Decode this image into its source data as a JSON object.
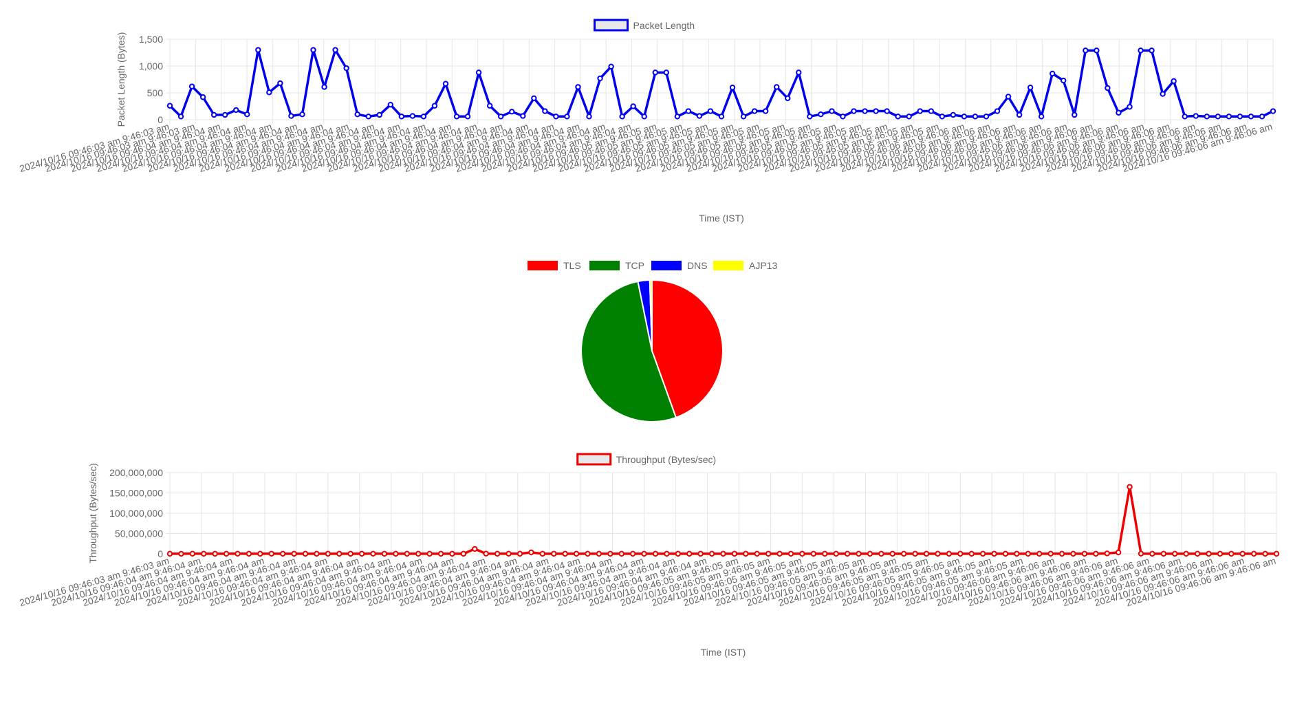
{
  "chart_data": [
    {
      "type": "line",
      "legend": "Packet Length",
      "legend_position": "top",
      "grid": true,
      "xlabel": "Time (IST)",
      "ylabel": "Packet Length (Bytes)",
      "ylim": [
        0,
        1500
      ],
      "yticks": [
        "0",
        "500",
        "1,000",
        "1,500"
      ],
      "color": "#0000ee",
      "values": [
        260,
        60,
        620,
        420,
        90,
        90,
        180,
        100,
        1300,
        510,
        680,
        70,
        100,
        1300,
        610,
        1300,
        960,
        100,
        60,
        90,
        280,
        60,
        70,
        60,
        260,
        670,
        60,
        60,
        880,
        260,
        60,
        150,
        70,
        400,
        160,
        60,
        60,
        610,
        60,
        770,
        990,
        60,
        250,
        60,
        880,
        880,
        60,
        160,
        70,
        160,
        60,
        600,
        60,
        160,
        160,
        610,
        400,
        880,
        60,
        100,
        160,
        60,
        160,
        160,
        160,
        160,
        60,
        60,
        160,
        160,
        60,
        90,
        60,
        60,
        60,
        160,
        430,
        90,
        600,
        60,
        860,
        730,
        90,
        1290,
        1290,
        590,
        130,
        240,
        1290,
        1290,
        480,
        720,
        60,
        70,
        60,
        60,
        60,
        60,
        60,
        60,
        160
      ],
      "tick_labels": [
        "2024/10/16 09:46:03 am 9:46:03 am",
        "2024/10/16 09:46:03 am 9:46:03 am",
        "2024/10/16 09:46:04 am 9:46:04 am",
        "2024/10/16 09:46:04 am 9:46:04 am",
        "2024/10/16 09:46:04 am 9:46:04 am",
        "2024/10/16 09:46:04 am 9:46:04 am",
        "2024/10/16 09:46:04 am 9:46:04 am",
        "2024/10/16 09:46:04 am 9:46:04 am",
        "2024/10/16 09:46:04 am 9:46:04 am",
        "2024/10/16 09:46:04 am 9:46:04 am",
        "2024/10/16 09:46:04 am 9:46:04 am",
        "2024/10/16 09:46:04 am 9:46:04 am",
        "2024/10/16 09:46:04 am 9:46:04 am",
        "2024/10/16 09:46:04 am 9:46:04 am",
        "2024/10/16 09:46:04 am 9:46:04 am",
        "2024/10/16 09:46:04 am 9:46:04 am",
        "2024/10/16 09:46:04 am 9:46:04 am",
        "2024/10/16 09:46:04 am 9:46:04 am",
        "2024/10/16 09:46:04 am 9:46:04 am",
        "2024/10/16 09:46:05 am 9:46:05 am",
        "2024/10/16 09:46:05 am 9:46:05 am",
        "2024/10/16 09:46:05 am 9:46:05 am",
        "2024/10/16 09:46:05 am 9:46:05 am",
        "2024/10/16 09:46:05 am 9:46:05 am",
        "2024/10/16 09:46:05 am 9:46:05 am",
        "2024/10/16 09:46:05 am 9:46:05 am",
        "2024/10/16 09:46:05 am 9:46:05 am",
        "2024/10/16 09:46:05 am 9:46:05 am",
        "2024/10/16 09:46:05 am 9:46:05 am",
        "2024/10/16 09:46:05 am 9:46:05 am",
        "2024/10/16 09:46:05 am 9:46:05 am",
        "2024/10/16 09:46:06 am 9:46:06 am",
        "2024/10/16 09:46:06 am 9:46:06 am",
        "2024/10/16 09:46:06 am 9:46:06 am",
        "2024/10/16 09:46:06 am 9:46:06 am",
        "2024/10/16 09:46:06 am 9:46:06 am",
        "2024/10/16 09:46:06 am 9:46:06 am",
        "2024/10/16 09:46:06 am 9:46:06 am",
        "2024/10/16 09:46:06 am 9:46:06 am",
        "2024/10/16 09:46:06 am 9:46:06 am",
        "2024/10/16 09:46:06 am 9:46:06 am",
        "2024/10/16 09:46:06 am 9:46:06 am",
        "2024/10/16 09:46:06 am 9:46:06 am",
        "2024/10/16 09:46:06 am 9:46:06 am"
      ]
    },
    {
      "type": "pie",
      "legend_position": "top",
      "labels": [
        "TLS",
        "TCP",
        "DNS",
        "AJP13"
      ],
      "values": [
        44.5,
        52.3,
        2.7,
        0.5
      ],
      "colors": [
        "#ff0000",
        "#008000",
        "#0000ff",
        "#ffff00"
      ]
    },
    {
      "type": "line",
      "legend": "Throughput (Bytes/sec)",
      "legend_position": "top",
      "grid": true,
      "xlabel": "Time (IST)",
      "ylabel": "Throughput (Bytes/sec)",
      "ylim": [
        0,
        200000000
      ],
      "yticks": [
        "0",
        "50,000,000",
        "100,000,000",
        "150,000,000",
        "200,000,000"
      ],
      "color": "#ee0000",
      "values": [
        200000,
        100000,
        300000,
        200000,
        200000,
        200000,
        300000,
        200000,
        200000,
        300000,
        200000,
        200000,
        200000,
        200000,
        200000,
        200000,
        200000,
        200000,
        300000,
        200000,
        200000,
        200000,
        200000,
        200000,
        200000,
        200000,
        200000,
        12000000,
        500000,
        200000,
        300000,
        200000,
        3500000,
        200000,
        200000,
        200000,
        200000,
        200000,
        200000,
        200000,
        200000,
        200000,
        200000,
        200000,
        200000,
        200000,
        200000,
        200000,
        200000,
        200000,
        200000,
        200000,
        200000,
        200000,
        200000,
        200000,
        200000,
        200000,
        200000,
        200000,
        200000,
        200000,
        200000,
        200000,
        200000,
        200000,
        200000,
        200000,
        200000,
        200000,
        200000,
        200000,
        200000,
        200000,
        200000,
        200000,
        200000,
        200000,
        300000,
        200000,
        200000,
        200000,
        200000,
        1000000,
        3500000,
        165000000,
        500000,
        200000,
        200000,
        200000,
        200000,
        200000,
        200000,
        200000,
        200000,
        200000,
        200000,
        200000,
        200000
      ],
      "tick_labels": [
        "2024/10/16 09:46:03 am 9:46:03 am",
        "2024/10/16 09:46:04 am 9:46:04 am",
        "2024/10/16 09:46:04 am 9:46:04 am",
        "2024/10/16 09:46:04 am 9:46:04 am",
        "2024/10/16 09:46:04 am 9:46:04 am",
        "2024/10/16 09:46:04 am 9:46:04 am",
        "2024/10/16 09:46:04 am 9:46:04 am",
        "2024/10/16 09:46:04 am 9:46:04 am",
        "2024/10/16 09:46:04 am 9:46:04 am",
        "2024/10/16 09:46:04 am 9:46:04 am",
        "2024/10/16 09:46:04 am 9:46:04 am",
        "2024/10/16 09:46:04 am 9:46:04 am",
        "2024/10/16 09:46:04 am 9:46:04 am",
        "2024/10/16 09:46:04 am 9:46:04 am",
        "2024/10/16 09:46:04 am 9:46:04 am",
        "2024/10/16 09:46:04 am 9:46:04 am",
        "2024/10/16 09:46:04 am 9:46:04 am",
        "2024/10/16 09:46:04 am 9:46:04 am",
        "2024/10/16 09:46:05 am 9:46:05 am",
        "2024/10/16 09:46:05 am 9:46:05 am",
        "2024/10/16 09:46:05 am 9:46:05 am",
        "2024/10/16 09:46:05 am 9:46:05 am",
        "2024/10/16 09:46:05 am 9:46:05 am",
        "2024/10/16 09:46:05 am 9:46:05 am",
        "2024/10/16 09:46:05 am 9:46:05 am",
        "2024/10/16 09:46:05 am 9:46:05 am",
        "2024/10/16 09:46:05 am 9:46:05 am",
        "2024/10/16 09:46:05 am 9:46:05 am",
        "2024/10/16 09:46:06 am 9:46:06 am",
        "2024/10/16 09:46:06 am 9:46:06 am",
        "2024/10/16 09:46:06 am 9:46:06 am",
        "2024/10/16 09:46:06 am 9:46:06 am",
        "2024/10/16 09:46:06 am 9:46:06 am",
        "2024/10/16 09:46:06 am 9:46:06 am",
        "2024/10/16 09:46:06 am 9:46:06 am",
        "2024/10/16 09:46:06 am 9:46:06 am"
      ]
    }
  ]
}
